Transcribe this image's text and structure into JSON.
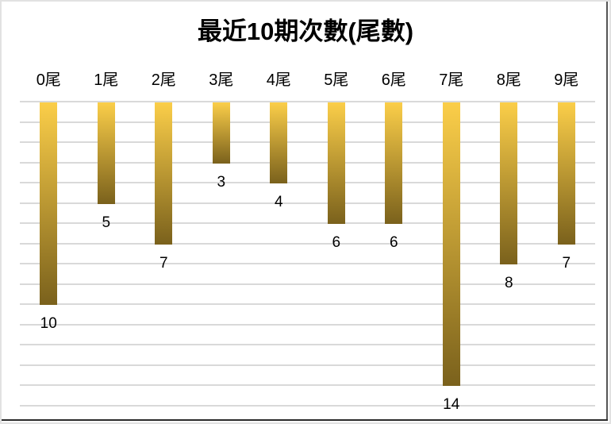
{
  "chart_data": {
    "type": "bar",
    "orientation": "columns-hanging-from-top",
    "title": "最近10期次數(尾數)",
    "categories": [
      "0尾",
      "1尾",
      "2尾",
      "3尾",
      "4尾",
      "5尾",
      "6尾",
      "7尾",
      "8尾",
      "9尾"
    ],
    "values": [
      10,
      5,
      7,
      3,
      4,
      6,
      6,
      14,
      8,
      7
    ],
    "value_axis": {
      "min": 0,
      "max": 15,
      "gridline_interval": 1,
      "direction": "down",
      "tick_labels_visible": false
    },
    "grid": true,
    "legend": "none",
    "data_labels": "below-bar-end",
    "colors": {
      "bar_gradient_top": "#FBCE49",
      "bar_gradient_bottom": "#7A611C",
      "gridline": "#D9D9D9",
      "text": "#000000",
      "background": "#FFFFFF"
    }
  }
}
